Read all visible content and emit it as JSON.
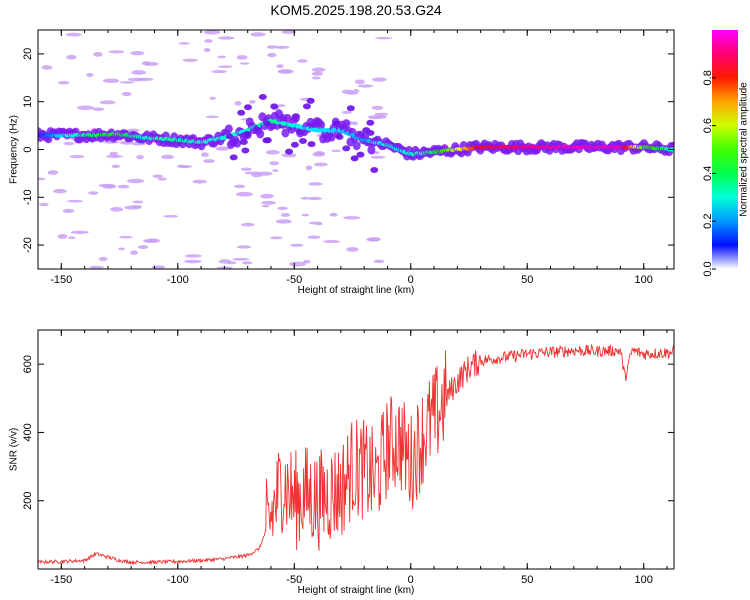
{
  "title": "KOM5.2025.198.20.53.G24",
  "chart_data": [
    {
      "type": "heatmap",
      "xlabel": "Height of straight line (km)",
      "ylabel": "Frequency (Hz)",
      "xlim": [
        -160,
        113
      ],
      "ylim": [
        -25,
        25
      ],
      "xticks": [
        -150,
        -100,
        -50,
        0,
        50,
        100
      ],
      "yticks": [
        -20,
        -10,
        0,
        10,
        20
      ],
      "colorbar": {
        "label": "Normalized spectral amplitude",
        "range": [
          0,
          1
        ],
        "ticks": [
          0.0,
          0.2,
          0.4,
          0.6,
          0.8
        ]
      },
      "ridge": {
        "x": [
          -160,
          -150,
          -135,
          -125,
          -115,
          -100,
          -90,
          -80,
          -70,
          -60,
          -50,
          -40,
          -30,
          -20,
          -10,
          0,
          10,
          20,
          30,
          50,
          70,
          90,
          100,
          113
        ],
        "y": [
          3,
          3,
          3,
          3.2,
          2.5,
          2,
          1.5,
          2.5,
          4,
          6,
          5,
          4,
          4,
          2,
          1,
          -1,
          -0.5,
          0,
          0.5,
          0.5,
          0.5,
          0.5,
          0.5,
          0
        ],
        "amplitude": [
          0.1,
          0.25,
          0.4,
          0.45,
          0.3,
          0.35,
          0.3,
          0.3,
          0.3,
          0.35,
          0.3,
          0.25,
          0.25,
          0.2,
          0.3,
          0.3,
          0.4,
          0.6,
          0.85,
          0.9,
          0.95,
          0.95,
          0.5,
          0.3
        ]
      }
    },
    {
      "type": "line",
      "xlabel": "Height of straight line (km)",
      "ylabel": "SNR (v/v)",
      "xlim": [
        -160,
        113
      ],
      "ylim": [
        0,
        700
      ],
      "xticks": [
        -150,
        -100,
        -50,
        0,
        50,
        100
      ],
      "yticks": [
        200,
        400,
        600
      ],
      "color": "#ee3333",
      "series": [
        {
          "x": [
            -160,
            -150,
            -140,
            -135,
            -130,
            -125,
            -120,
            -110,
            -100,
            -90,
            -80,
            -70,
            -65,
            -60,
            -55,
            -50,
            -45,
            -40,
            -35,
            -30,
            -25,
            -20,
            -15,
            -10,
            -5,
            0,
            5,
            10,
            15,
            20,
            25,
            30,
            40,
            50,
            60,
            70,
            80,
            90,
            92,
            95,
            100,
            113
          ],
          "values": [
            20,
            22,
            25,
            45,
            35,
            25,
            20,
            20,
            22,
            25,
            30,
            40,
            60,
            150,
            260,
            200,
            220,
            200,
            220,
            230,
            300,
            290,
            260,
            360,
            380,
            310,
            390,
            440,
            500,
            550,
            590,
            610,
            620,
            630,
            635,
            640,
            638,
            640,
            560,
            640,
            630,
            635
          ]
        }
      ]
    }
  ]
}
